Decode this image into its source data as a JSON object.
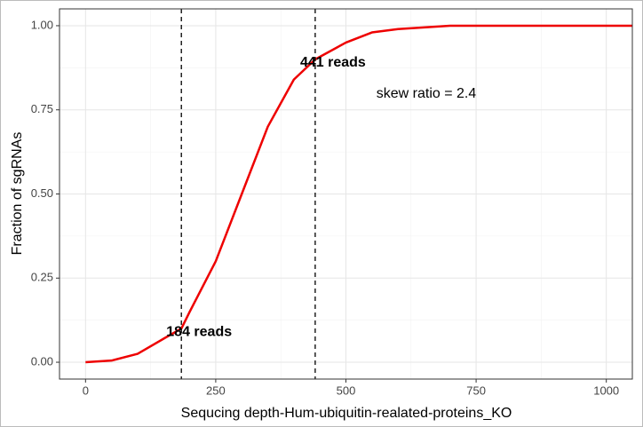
{
  "chart_data": {
    "type": "line",
    "x_label": "Sequcing depth-Hum-ubiquitin-realated-proteins_KO",
    "y_label": "Fraction of sgRNAs",
    "x": [
      0,
      50,
      100,
      150,
      184,
      200,
      250,
      300,
      350,
      400,
      441,
      500,
      550,
      600,
      700,
      800,
      900,
      1000,
      1050
    ],
    "series": [
      {
        "name": "Fraction of sgRNAs",
        "color": "#ee0000",
        "values": [
          0,
          0.005,
          0.025,
          0.07,
          0.1,
          0.15,
          0.3,
          0.5,
          0.7,
          0.84,
          0.9,
          0.95,
          0.98,
          0.99,
          1.0,
          1.0,
          1.0,
          1.0,
          1.0
        ]
      }
    ],
    "xlim": [
      -50,
      1050
    ],
    "ylim": [
      -0.05,
      1.05
    ],
    "xticks": [
      0,
      250,
      500,
      750,
      1000
    ],
    "yticks": [
      {
        "value": 0,
        "label": "0.00"
      },
      {
        "value": 0.25,
        "label": "0.25"
      },
      {
        "value": 0.5,
        "label": "0.50"
      },
      {
        "value": 0.75,
        "label": "0.75"
      },
      {
        "value": 1,
        "label": "1.00"
      }
    ],
    "vlines": [
      {
        "value": 184,
        "label": "184 reads"
      },
      {
        "value": 441,
        "label": "441 reads"
      }
    ],
    "annotation": "skew ratio = 2.4",
    "grid": true
  }
}
